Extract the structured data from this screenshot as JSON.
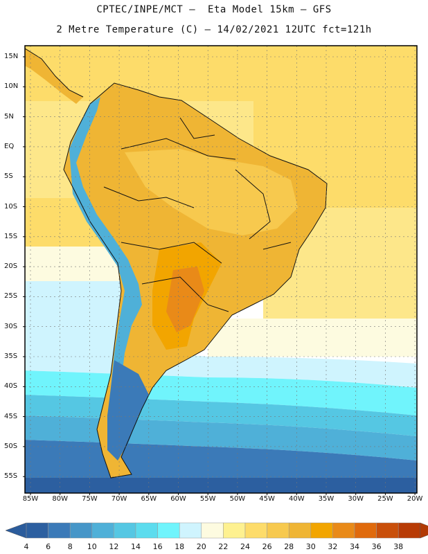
{
  "titles": {
    "line1": "CPTEC/INPE/MCT –  Eta Model 15km – GFS",
    "line2": "2 Metre Temperature (C) – 14/02/2021 12UTC fct=121h"
  },
  "axes": {
    "lat_labels": [
      "15N",
      "10N",
      "5N",
      "EQ",
      "5S",
      "10S",
      "15S",
      "20S",
      "25S",
      "30S",
      "35S",
      "40S",
      "45S",
      "50S",
      "55S"
    ],
    "lon_labels": [
      "85W",
      "80W",
      "75W",
      "70W",
      "65W",
      "60W",
      "55W",
      "50W",
      "45W",
      "40W",
      "35W",
      "30W",
      "25W",
      "20W"
    ]
  },
  "colorbar": {
    "values": [
      "4",
      "6",
      "8",
      "10",
      "12",
      "14",
      "16",
      "18",
      "20",
      "22",
      "24",
      "26",
      "28",
      "30",
      "32",
      "34",
      "36",
      "38"
    ],
    "colors": [
      "#2c5fa0",
      "#3b7ab8",
      "#4696c8",
      "#4fb0d8",
      "#55c7e3",
      "#5cdcee",
      "#70f4fc",
      "#cff4fe",
      "#fdfbe0",
      "#fef190",
      "#fddc6a",
      "#f7c94e",
      "#efb534",
      "#f2a500",
      "#e98a18",
      "#e06a0c",
      "#c94f0a",
      "#b83b05"
    ],
    "low_color": "#2b5c9c",
    "high_color": "#b23a04"
  }
}
